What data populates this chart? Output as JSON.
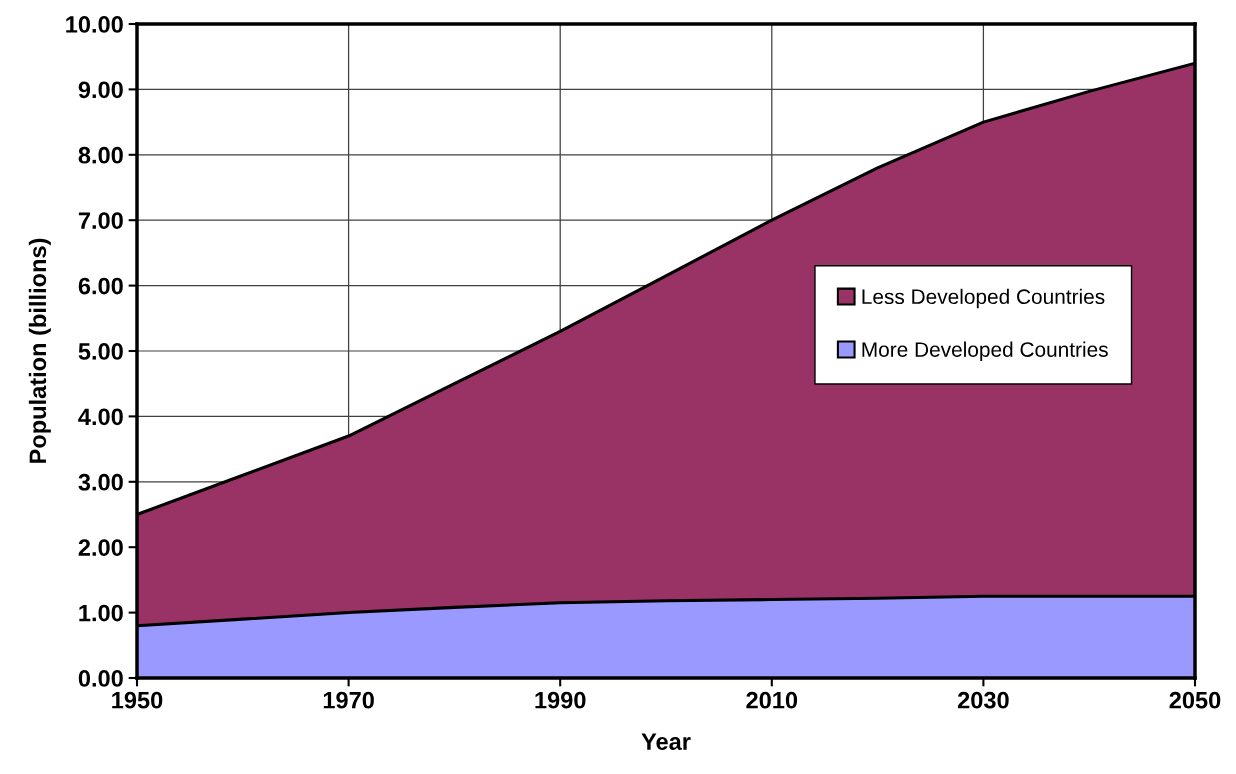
{
  "chart_data": {
    "type": "area",
    "stacked": true,
    "xlabel": "Year",
    "ylabel": "Population (billions)",
    "x": [
      1950,
      1960,
      1970,
      1980,
      1990,
      2000,
      2010,
      2020,
      2030,
      2040,
      2050
    ],
    "series": [
      {
        "name": "More Developed Countries",
        "color": "#9999ff",
        "values": [
          0.8,
          0.9,
          1.0,
          1.08,
          1.15,
          1.18,
          1.2,
          1.22,
          1.25,
          1.25,
          1.25
        ]
      },
      {
        "name": "Less Developed Countries",
        "color": "#993366",
        "values": [
          1.7,
          2.2,
          2.7,
          3.42,
          4.15,
          4.97,
          5.8,
          6.58,
          7.25,
          7.72,
          8.15
        ]
      }
    ],
    "xlim": [
      1950,
      2050
    ],
    "xticks": [
      1950,
      1970,
      1990,
      2010,
      2030,
      2050
    ],
    "ylim": [
      0,
      10
    ],
    "yticks": [
      {
        "value": 0,
        "label": "0.00"
      },
      {
        "value": 1,
        "label": "1.00"
      },
      {
        "value": 2,
        "label": "2.00"
      },
      {
        "value": 3,
        "label": "3.00"
      },
      {
        "value": 4,
        "label": "4.00"
      },
      {
        "value": 5,
        "label": "5.00"
      },
      {
        "value": 6,
        "label": "6.00"
      },
      {
        "value": 7,
        "label": "7.00"
      },
      {
        "value": 8,
        "label": "8.00"
      },
      {
        "value": 9,
        "label": "9.00"
      },
      {
        "value": 10,
        "label": "10.00"
      }
    ],
    "grid": true,
    "legend": "right"
  }
}
